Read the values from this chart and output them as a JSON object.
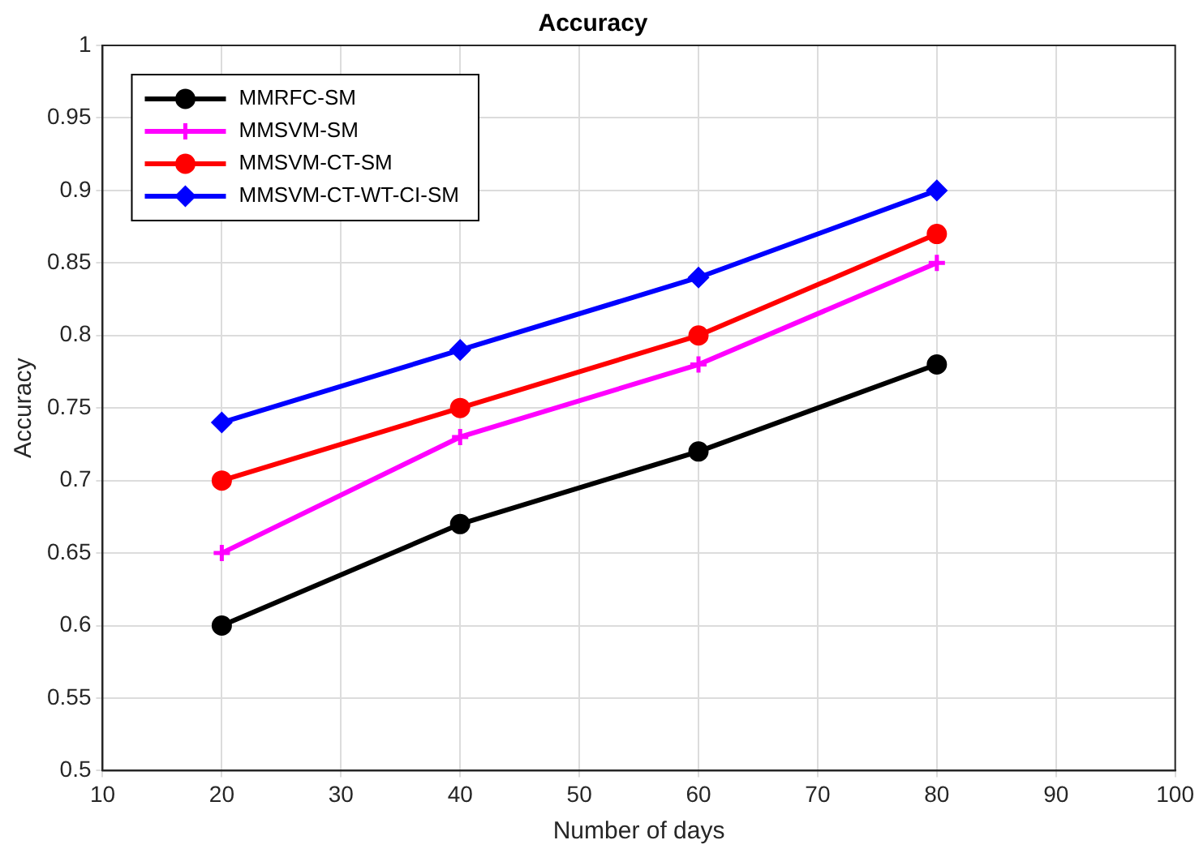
{
  "chart_data": {
    "type": "line",
    "title": "Accuracy",
    "xlabel": "Number of days",
    "ylabel": "Accuracy",
    "x": [
      20,
      40,
      60,
      80
    ],
    "series": [
      {
        "name": "MMRFC-SM",
        "color": "#000000",
        "marker": "circle",
        "values": [
          0.6,
          0.67,
          0.72,
          0.78
        ]
      },
      {
        "name": "MMSVM-SM",
        "color": "#ff00ff",
        "marker": "cross",
        "values": [
          0.65,
          0.73,
          0.78,
          0.85
        ]
      },
      {
        "name": "MMSVM-CT-SM",
        "color": "#ff0000",
        "marker": "circle",
        "values": [
          0.7,
          0.75,
          0.8,
          0.87
        ]
      },
      {
        "name": "MMSVM-CT-WT-CI-SM",
        "color": "#0000ff",
        "marker": "diamond",
        "values": [
          0.74,
          0.79,
          0.84,
          0.9
        ]
      }
    ],
    "xlim": [
      10,
      100
    ],
    "xticks": [
      10,
      20,
      30,
      40,
      50,
      60,
      70,
      80,
      90,
      100
    ],
    "ylim": [
      0.5,
      1
    ],
    "yticks": [
      0.5,
      0.55,
      0.6,
      0.65,
      0.7,
      0.75,
      0.8,
      0.85,
      0.9,
      0.95,
      1
    ],
    "grid": true,
    "legend": "top left",
    "line_style": "solid"
  }
}
